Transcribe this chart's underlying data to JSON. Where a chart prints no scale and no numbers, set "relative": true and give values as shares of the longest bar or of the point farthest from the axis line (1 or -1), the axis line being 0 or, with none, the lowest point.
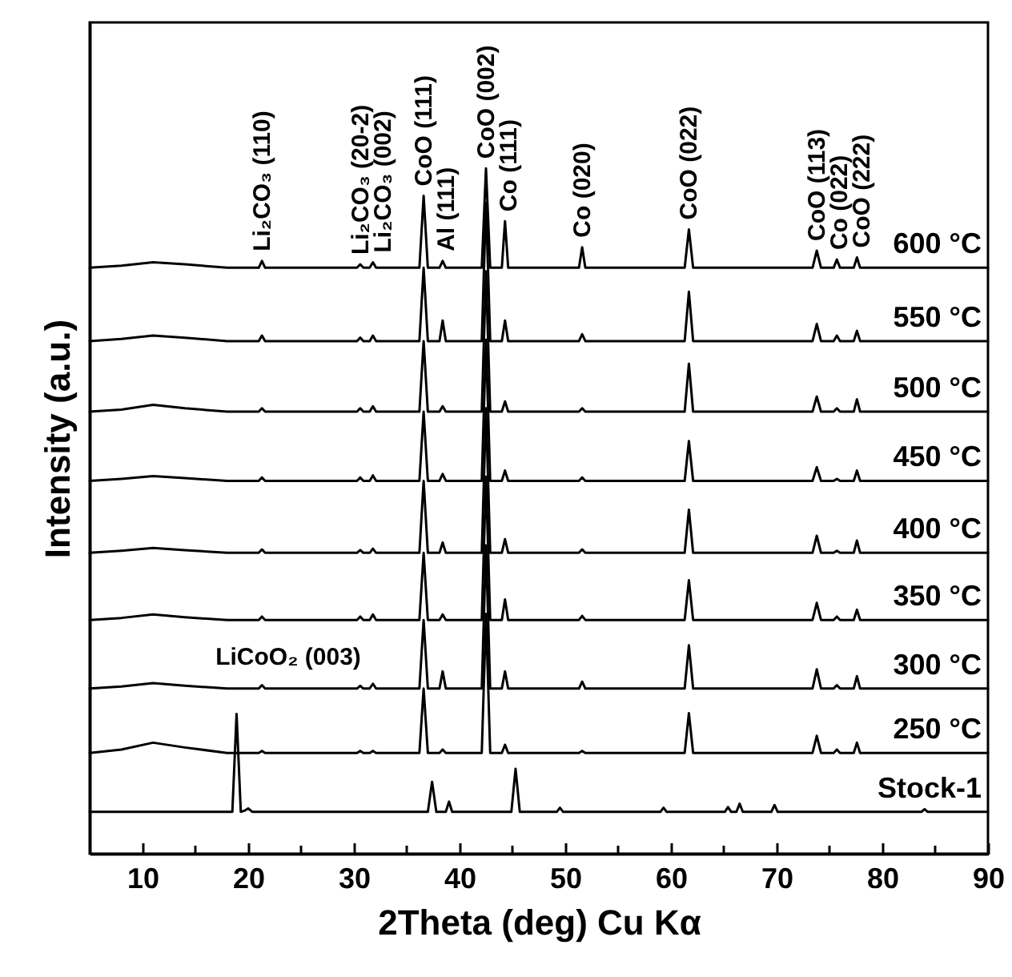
{
  "chart_data": {
    "type": "line",
    "relative": true,
    "xlabel": "2Theta (deg) Cu Kα",
    "ylabel": "Intensity (a.u.)",
    "xlim": [
      5,
      90
    ],
    "xticks": [
      10,
      {
        "value": 15,
        "label": null
      },
      20,
      {
        "value": 25,
        "label": null
      },
      30,
      {
        "value": 35,
        "label": null
      },
      40,
      {
        "value": 45,
        "label": null
      },
      50,
      {
        "value": 55,
        "label": null
      },
      60,
      {
        "value": 65,
        "label": null
      },
      70,
      {
        "value": 75,
        "label": null
      },
      80,
      {
        "value": 85,
        "label": null
      },
      90
    ],
    "series": [
      {
        "name": "600 °C",
        "color": "#000000",
        "x": [
          5,
          8,
          11,
          14,
          18,
          21,
          21.3,
          21.6,
          25,
          30.3,
          30.6,
          30.9,
          31.5,
          31.8,
          32.1,
          36.2,
          36.6,
          37,
          38.1,
          38.4,
          38.7,
          42.1,
          42.5,
          42.9,
          44,
          44.3,
          44.6,
          48,
          51.3,
          51.6,
          51.9,
          58,
          61.3,
          61.7,
          62.1,
          73.4,
          73.8,
          74.2,
          75.4,
          75.7,
          76,
          77.3,
          77.6,
          77.9,
          84,
          90
        ],
        "values": [
          0.855,
          0.858,
          0.863,
          0.86,
          0.855,
          0.855,
          0.865,
          0.855,
          0.855,
          0.855,
          0.86,
          0.855,
          0.855,
          0.863,
          0.855,
          0.855,
          0.96,
          0.855,
          0.855,
          0.865,
          0.855,
          0.855,
          1.0,
          0.855,
          0.855,
          0.923,
          0.855,
          0.855,
          0.855,
          0.885,
          0.855,
          0.855,
          0.855,
          0.911,
          0.855,
          0.855,
          0.88,
          0.855,
          0.855,
          0.867,
          0.855,
          0.855,
          0.87,
          0.855,
          0.855,
          0.855
        ]
      },
      {
        "name": "550 °C",
        "color": "#000000",
        "x": [
          5,
          8,
          11,
          14,
          18,
          21,
          21.3,
          21.6,
          25,
          30.3,
          30.6,
          30.9,
          31.5,
          31.8,
          32.1,
          36.2,
          36.6,
          37,
          38.1,
          38.4,
          38.7,
          42.1,
          42.5,
          42.9,
          44,
          44.3,
          44.6,
          48,
          51.3,
          51.6,
          51.9,
          58,
          61.3,
          61.7,
          62.1,
          73.4,
          73.8,
          74.2,
          75.4,
          75.7,
          76,
          77.3,
          77.6,
          77.9,
          84,
          90
        ],
        "values": [
          0.748,
          0.751,
          0.756,
          0.753,
          0.748,
          0.748,
          0.756,
          0.748,
          0.748,
          0.748,
          0.753,
          0.748,
          0.748,
          0.756,
          0.748,
          0.748,
          0.855,
          0.748,
          0.748,
          0.778,
          0.748,
          0.748,
          0.95,
          0.748,
          0.748,
          0.778,
          0.748,
          0.748,
          0.748,
          0.758,
          0.748,
          0.748,
          0.748,
          0.82,
          0.748,
          0.748,
          0.773,
          0.748,
          0.748,
          0.756,
          0.748,
          0.748,
          0.763,
          0.748,
          0.748,
          0.748
        ]
      },
      {
        "name": "500 °C",
        "color": "#000000",
        "x": [
          5,
          8,
          11,
          14,
          18,
          21,
          21.3,
          21.6,
          25,
          30.3,
          30.6,
          30.9,
          31.5,
          31.8,
          32.1,
          36.2,
          36.6,
          37,
          38.1,
          38.4,
          38.7,
          42.1,
          42.5,
          42.9,
          44,
          44.3,
          44.6,
          48,
          51.3,
          51.6,
          51.9,
          58,
          61.3,
          61.7,
          62.1,
          73.4,
          73.8,
          74.2,
          75.4,
          75.7,
          76,
          77.3,
          77.6,
          77.9,
          84,
          90
        ],
        "values": [
          0.645,
          0.648,
          0.655,
          0.65,
          0.645,
          0.645,
          0.65,
          0.645,
          0.645,
          0.645,
          0.65,
          0.645,
          0.645,
          0.653,
          0.645,
          0.645,
          0.748,
          0.645,
          0.645,
          0.653,
          0.645,
          0.645,
          0.85,
          0.645,
          0.645,
          0.66,
          0.645,
          0.645,
          0.645,
          0.65,
          0.645,
          0.645,
          0.645,
          0.715,
          0.645,
          0.645,
          0.667,
          0.645,
          0.645,
          0.65,
          0.645,
          0.645,
          0.663,
          0.645,
          0.645,
          0.645
        ]
      },
      {
        "name": "450 °C",
        "color": "#000000",
        "x": [
          5,
          8,
          11,
          14,
          18,
          21,
          21.3,
          21.6,
          25,
          30.3,
          30.6,
          30.9,
          31.5,
          31.8,
          32.1,
          36.2,
          36.6,
          37,
          38.1,
          38.4,
          38.7,
          42.1,
          42.5,
          42.9,
          44,
          44.3,
          44.6,
          48,
          51.3,
          51.6,
          51.9,
          58,
          61.3,
          61.7,
          62.1,
          73.4,
          73.8,
          74.2,
          75.4,
          75.7,
          76,
          77.3,
          77.6,
          77.9,
          84,
          90
        ],
        "values": [
          0.544,
          0.547,
          0.551,
          0.548,
          0.544,
          0.544,
          0.549,
          0.544,
          0.544,
          0.544,
          0.549,
          0.544,
          0.544,
          0.552,
          0.544,
          0.544,
          0.645,
          0.544,
          0.544,
          0.554,
          0.544,
          0.544,
          0.75,
          0.544,
          0.544,
          0.559,
          0.544,
          0.544,
          0.544,
          0.549,
          0.544,
          0.544,
          0.544,
          0.602,
          0.544,
          0.544,
          0.564,
          0.544,
          0.544,
          0.547,
          0.544,
          0.544,
          0.559,
          0.544,
          0.544,
          0.544
        ]
      },
      {
        "name": "400 °C",
        "color": "#000000",
        "x": [
          5,
          8,
          11,
          14,
          18,
          21,
          21.3,
          21.6,
          25,
          30.3,
          30.6,
          30.9,
          31.5,
          31.8,
          32.1,
          36.2,
          36.6,
          37,
          38.1,
          38.4,
          38.7,
          42.1,
          42.5,
          42.9,
          44,
          44.3,
          44.6,
          48,
          51.3,
          51.6,
          51.9,
          58,
          61.3,
          61.7,
          62.1,
          73.4,
          73.8,
          74.2,
          75.4,
          75.7,
          76,
          77.3,
          77.6,
          77.9,
          84,
          90
        ],
        "values": [
          0.439,
          0.442,
          0.446,
          0.443,
          0.439,
          0.439,
          0.444,
          0.439,
          0.439,
          0.439,
          0.443,
          0.439,
          0.439,
          0.445,
          0.439,
          0.439,
          0.544,
          0.439,
          0.439,
          0.454,
          0.439,
          0.439,
          0.65,
          0.439,
          0.439,
          0.459,
          0.439,
          0.439,
          0.439,
          0.444,
          0.439,
          0.439,
          0.439,
          0.502,
          0.439,
          0.439,
          0.464,
          0.439,
          0.439,
          0.442,
          0.439,
          0.439,
          0.457,
          0.439,
          0.439,
          0.439
        ]
      },
      {
        "name": "350 °C",
        "color": "#000000",
        "x": [
          5,
          8,
          11,
          14,
          18,
          21,
          21.3,
          21.6,
          25,
          30.3,
          30.6,
          30.9,
          31.5,
          31.8,
          32.1,
          36.2,
          36.6,
          37,
          38.1,
          38.4,
          38.7,
          42.1,
          42.5,
          42.9,
          44,
          44.3,
          44.6,
          48,
          51.3,
          51.6,
          51.9,
          58,
          61.3,
          61.7,
          62.1,
          73.4,
          73.8,
          74.2,
          75.4,
          75.7,
          76,
          77.3,
          77.6,
          77.9,
          84,
          90
        ],
        "values": [
          0.341,
          0.344,
          0.349,
          0.345,
          0.341,
          0.341,
          0.346,
          0.341,
          0.341,
          0.341,
          0.346,
          0.341,
          0.341,
          0.349,
          0.341,
          0.341,
          0.439,
          0.341,
          0.341,
          0.349,
          0.341,
          0.341,
          0.55,
          0.341,
          0.341,
          0.371,
          0.341,
          0.341,
          0.341,
          0.347,
          0.341,
          0.341,
          0.341,
          0.399,
          0.341,
          0.341,
          0.366,
          0.341,
          0.341,
          0.346,
          0.341,
          0.341,
          0.356,
          0.341,
          0.341,
          0.341
        ]
      },
      {
        "name": "300 °C",
        "color": "#000000",
        "x": [
          5,
          8,
          11,
          14,
          18,
          21,
          21.3,
          21.6,
          25,
          30.3,
          30.6,
          30.9,
          31.5,
          31.8,
          32.1,
          36.2,
          36.6,
          37,
          38.1,
          38.4,
          38.7,
          42.1,
          42.5,
          42.9,
          44,
          44.3,
          44.6,
          48,
          51.3,
          51.6,
          51.9,
          58,
          61.3,
          61.7,
          62.1,
          73.4,
          73.8,
          74.2,
          75.4,
          75.7,
          76,
          77.3,
          77.6,
          77.9,
          84,
          90
        ],
        "values": [
          0.241,
          0.244,
          0.249,
          0.245,
          0.241,
          0.241,
          0.246,
          0.241,
          0.241,
          0.241,
          0.245,
          0.241,
          0.241,
          0.248,
          0.241,
          0.241,
          0.341,
          0.241,
          0.241,
          0.266,
          0.241,
          0.241,
          0.45,
          0.241,
          0.241,
          0.266,
          0.241,
          0.241,
          0.241,
          0.251,
          0.241,
          0.241,
          0.241,
          0.304,
          0.241,
          0.241,
          0.269,
          0.241,
          0.241,
          0.246,
          0.241,
          0.241,
          0.259,
          0.241,
          0.241,
          0.241
        ]
      },
      {
        "name": "250 °C",
        "color": "#000000",
        "x": [
          5,
          8,
          11,
          14,
          18,
          21,
          21.3,
          21.6,
          25,
          30.3,
          30.6,
          30.9,
          31.5,
          31.8,
          32.1,
          36.2,
          36.6,
          37,
          38.1,
          38.4,
          38.7,
          42.1,
          42.5,
          42.9,
          44,
          44.3,
          44.6,
          48,
          51.3,
          51.6,
          51.9,
          58,
          61.3,
          61.7,
          62.1,
          73.4,
          73.8,
          74.2,
          75.4,
          75.7,
          76,
          77.3,
          77.6,
          77.9,
          84,
          90
        ],
        "values": [
          0.147,
          0.152,
          0.162,
          0.155,
          0.147,
          0.147,
          0.15,
          0.147,
          0.147,
          0.147,
          0.15,
          0.147,
          0.147,
          0.15,
          0.147,
          0.147,
          0.241,
          0.147,
          0.147,
          0.152,
          0.147,
          0.147,
          0.35,
          0.147,
          0.147,
          0.159,
          0.147,
          0.147,
          0.147,
          0.15,
          0.147,
          0.147,
          0.147,
          0.205,
          0.147,
          0.147,
          0.172,
          0.147,
          0.147,
          0.152,
          0.147,
          0.147,
          0.162,
          0.147,
          0.147,
          0.147
        ]
      },
      {
        "name": "Stock-1",
        "color": "#000000",
        "x": [
          5,
          18.5,
          18.9,
          19.3,
          19.7,
          20,
          20.4,
          37,
          37.4,
          37.8,
          38.7,
          39,
          39.3,
          44.9,
          45.3,
          45.7,
          49.2,
          49.5,
          49.8,
          59,
          59.3,
          59.6,
          65.1,
          65.4,
          65.7,
          66.2,
          66.5,
          66.8,
          69.5,
          69.8,
          70.1,
          83.7,
          84,
          84.3,
          90
        ],
        "values": [
          0.061,
          0.061,
          0.204,
          0.061,
          0.063,
          0.066,
          0.061,
          0.061,
          0.105,
          0.061,
          0.061,
          0.076,
          0.061,
          0.061,
          0.124,
          0.061,
          0.061,
          0.067,
          0.061,
          0.061,
          0.067,
          0.061,
          0.061,
          0.068,
          0.061,
          0.061,
          0.073,
          0.061,
          0.061,
          0.071,
          0.061,
          0.061,
          0.065,
          0.061,
          0.061
        ]
      }
    ],
    "annotations": [
      {
        "text": "Li₂CO₃ (110)",
        "x": 21.3,
        "y": 0.865
      },
      {
        "text": "Li₂CO₃ (20-2)",
        "x": 30.6,
        "y": 0.86
      },
      {
        "text": "Li₂CO₃ (002)",
        "x": 31.8,
        "y": 0.863
      },
      {
        "text": "CoO (111)",
        "x": 36.6,
        "y": 0.96
      },
      {
        "text": "Al (111)",
        "x": 38.4,
        "y": 0.865
      },
      {
        "text": "CoO (002)",
        "x": 42.5,
        "y": 1.0
      },
      {
        "text": "Co (111)",
        "x": 44.3,
        "y": 0.923
      },
      {
        "text": "Co (020)",
        "x": 51.6,
        "y": 0.885
      },
      {
        "text": "CoO (022)",
        "x": 61.7,
        "y": 0.911
      },
      {
        "text": "CoO (113)",
        "x": 73.8,
        "y": 0.88
      },
      {
        "text": "Co (022)",
        "x": 75.7,
        "y": 0.867
      },
      {
        "text": "CoO (222)",
        "x": 77.6,
        "y": 0.87
      },
      "LiCoO₂ (003)"
    ]
  }
}
